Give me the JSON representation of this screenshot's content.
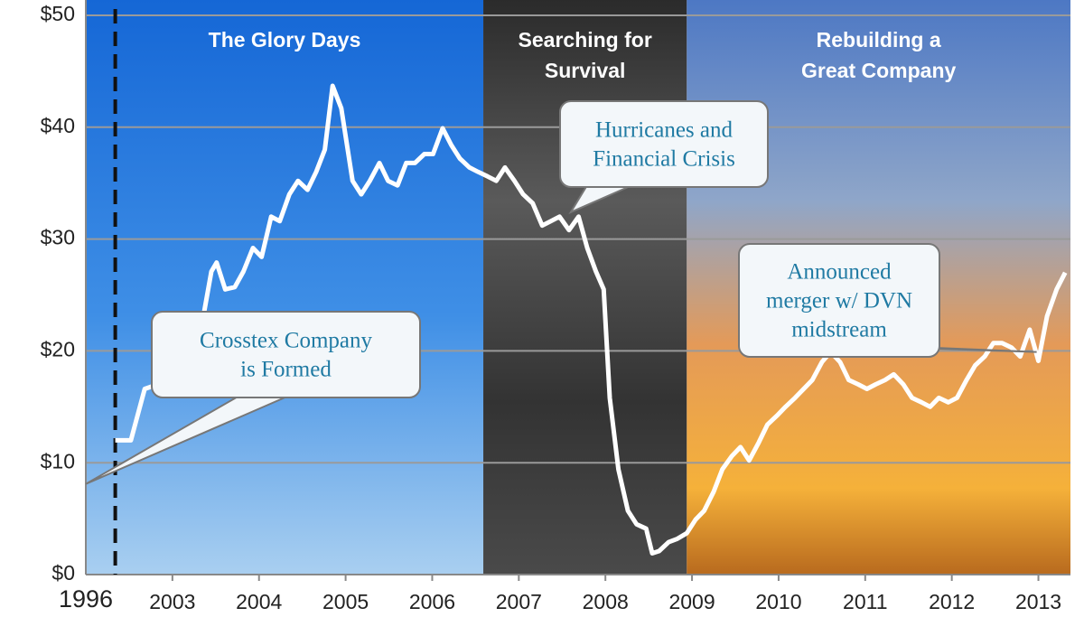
{
  "chart_data": {
    "type": "line",
    "color": "#ffffff",
    "xlim": [
      2002,
      2013.37
    ],
    "x_start_label": "1996",
    "xticks": [
      2003,
      2004,
      2005,
      2006,
      2007,
      2008,
      2009,
      2010,
      2011,
      2012,
      2013
    ],
    "ylim": [
      0,
      50
    ],
    "yticks": [
      {
        "value": 0,
        "label": "$0"
      },
      {
        "value": 10,
        "label": "$10"
      },
      {
        "value": 20,
        "label": "$20"
      },
      {
        "value": 30,
        "label": "$30"
      },
      {
        "value": 40,
        "label": "$40"
      },
      {
        "value": 50,
        "label": "$50"
      }
    ],
    "grid": true,
    "marker_line_x": 2002.34,
    "regions": [
      {
        "label_lines": [
          "The Glory Days"
        ],
        "start": 2002,
        "end": 2006.59
      },
      {
        "label_lines": [
          "Searching for",
          "Survival"
        ],
        "start": 2006.59,
        "end": 2008.94
      },
      {
        "label_lines": [
          "Rebuilding a",
          "Great Company"
        ],
        "start": 2008.94,
        "end": 2013.37
      }
    ],
    "annotations": [
      {
        "lines": [
          "Crosstex Company",
          "is Formed"
        ],
        "x": 2002,
        "y": 8.1
      },
      {
        "lines": [
          "Hurricanes and",
          "Financial Crisis"
        ],
        "x": 2007.6,
        "y": 32.4
      },
      {
        "lines": [
          "Announced",
          "merger w/ DVN",
          "midstream"
        ],
        "x": 2012.98,
        "y": 19.9
      }
    ],
    "series": [
      {
        "x": [
          2002.34,
          2002.52,
          2002.68,
          2002.83,
          2003.09,
          2003.3,
          2003.45,
          2003.51,
          2003.61,
          2003.72,
          2003.82,
          2003.93,
          2004.03,
          2004.14,
          2004.24,
          2004.35,
          2004.45,
          2004.56,
          2004.66,
          2004.76,
          2004.85,
          2004.95,
          2005.08,
          2005.18,
          2005.28,
          2005.39,
          2005.49,
          2005.6,
          2005.7,
          2005.8,
          2005.91,
          2006.01,
          2006.12,
          2006.22,
          2006.32,
          2006.43,
          2006.53,
          2006.64,
          2006.74,
          2006.84,
          2006.95,
          2007.05,
          2007.16,
          2007.27,
          2007.37,
          2007.47,
          2007.58,
          2007.69,
          2007.79,
          2007.89,
          2007.98,
          2008.05,
          2008.15,
          2008.26,
          2008.36,
          2008.47,
          2008.54,
          2008.62,
          2008.73,
          2008.83,
          2008.94,
          2009.04,
          2009.14,
          2009.25,
          2009.35,
          2009.46,
          2009.56,
          2009.66,
          2009.77,
          2009.87,
          2009.98,
          2010.08,
          2010.19,
          2010.29,
          2010.39,
          2010.5,
          2010.6,
          2010.71,
          2010.81,
          2010.92,
          2011.02,
          2011.12,
          2011.23,
          2011.33,
          2011.44,
          2011.54,
          2011.65,
          2011.75,
          2011.85,
          2011.96,
          2012.06,
          2012.17,
          2012.27,
          2012.38,
          2012.48,
          2012.58,
          2012.69,
          2012.79,
          2012.9,
          2013.0,
          2013.1,
          2013.21,
          2013.31
        ],
        "values": [
          12.0,
          12.0,
          16.6,
          17.0,
          18.2,
          20.6,
          27.1,
          27.9,
          25.5,
          25.7,
          27.1,
          29.2,
          28.4,
          32.0,
          31.6,
          34.0,
          35.2,
          34.4,
          36.0,
          38.0,
          43.7,
          41.7,
          35.2,
          34.0,
          35.2,
          36.8,
          35.2,
          34.8,
          36.8,
          36.8,
          37.6,
          37.6,
          39.9,
          38.4,
          37.2,
          36.4,
          36.0,
          35.6,
          35.2,
          36.4,
          35.2,
          34.0,
          33.2,
          31.2,
          31.6,
          32.0,
          30.8,
          32.0,
          29.2,
          27.1,
          25.5,
          15.8,
          9.4,
          5.7,
          4.5,
          4.1,
          1.9,
          2.1,
          2.9,
          3.2,
          3.7,
          4.9,
          5.7,
          7.4,
          9.4,
          10.6,
          11.4,
          10.2,
          11.8,
          13.4,
          14.2,
          15.0,
          15.8,
          16.6,
          17.4,
          19.0,
          19.9,
          19.0,
          17.4,
          17.0,
          16.6,
          17.0,
          17.4,
          17.9,
          17.0,
          15.8,
          15.4,
          15.0,
          15.8,
          15.4,
          15.8,
          17.4,
          18.7,
          19.5,
          20.7,
          20.7,
          20.3,
          19.5,
          21.9,
          19.1,
          23.1,
          25.5,
          27.0
        ]
      }
    ]
  }
}
